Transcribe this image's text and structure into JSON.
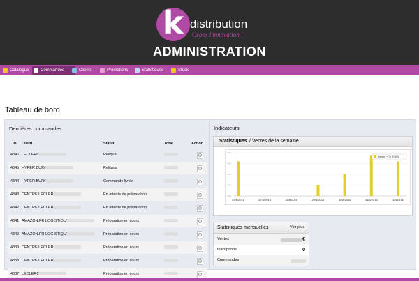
{
  "brand": {
    "logo_letter": "k",
    "logo_word": "distribution",
    "slogan": "Osons l'innovation !",
    "admin_title": "ADMINISTRATION"
  },
  "colors": {
    "header_bg": "#2d2d2d",
    "brand_purple": "#b04aa4",
    "nav_active": "#7d2f76",
    "panel_bg": "#e8eaf2",
    "bar_yellow": "#e3cf2b"
  },
  "nav": [
    {
      "label": "Catalogue",
      "icon": "folder-icon"
    },
    {
      "label": "Commandes",
      "icon": "cart-icon",
      "active": true
    },
    {
      "label": "Clients",
      "icon": "users-icon"
    },
    {
      "label": "Promotions",
      "icon": "tag-icon"
    },
    {
      "label": "Statistiques",
      "icon": "chart-icon"
    },
    {
      "label": "Stock",
      "icon": "box-icon"
    }
  ],
  "page_title": "Tableau de bord",
  "orders": {
    "title": "Dernières commandes",
    "headers": {
      "id": "ID",
      "client": "Client",
      "status": "Statut",
      "total": "Total",
      "action": "Action"
    },
    "rows": [
      {
        "id": "4346",
        "client": "LECLERC",
        "status": "Reliquat"
      },
      {
        "id": "4345",
        "client": "HYPER BURO",
        "status": "Reliquat"
      },
      {
        "id": "4344",
        "client": "HYPER BURO",
        "status": "Commande livrée"
      },
      {
        "id": "4343",
        "client": "CENTRE LECLERC",
        "status": "En attente de préparation"
      },
      {
        "id": "4342",
        "client": "CENTRE LECLERC",
        "status": "En attente de préparation"
      },
      {
        "id": "4341",
        "client": "AMAZON.FR LOGISTIQUE",
        "status": "Préparation en cours"
      },
      {
        "id": "4340",
        "client": "AMAZON.FR LOGISTIQUE",
        "status": "Préparation en cours"
      },
      {
        "id": "4339",
        "client": "CENTRE LECLERC",
        "status": "Préparation en cours"
      },
      {
        "id": "4338",
        "client": "CENTRE LECLERC",
        "status": "Préparation en cours"
      },
      {
        "id": "4337",
        "client": "LECLERC",
        "status": "Préparation en cours"
      }
    ]
  },
  "indicators": {
    "title": "Indicateurs",
    "stats_title_bold": "Statistiques",
    "stats_title_rest": " / Ventes de la semaine"
  },
  "chart_data": {
    "type": "bar",
    "categories": [
      "25/8/2016",
      "27/8/2016",
      "28/8/2016",
      "29/8/2016",
      "30/8/2016",
      "31/8/2016",
      "1/9/2016"
    ],
    "series": [
      {
        "name": "Ventes + Tx (EUR)",
        "values": [
          0.8,
          0,
          0,
          0.25,
          0.5,
          0.93,
          0.8
        ]
      }
    ],
    "ylim": [
      0,
      1
    ],
    "legend": "top-right",
    "grid": true
  },
  "monthly": {
    "title": "Statistiques mensuelles",
    "link": "Voir plus",
    "rows": [
      {
        "label": "Ventes",
        "value": "€"
      },
      {
        "label": "Inscriptions",
        "value": "0"
      },
      {
        "label": "Commandes",
        "value": ""
      }
    ]
  }
}
